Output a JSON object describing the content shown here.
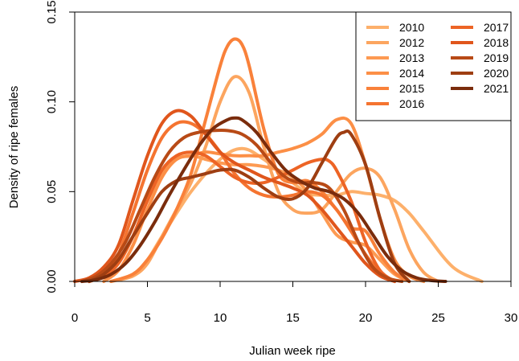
{
  "chart_data": {
    "type": "line",
    "title": "",
    "xlabel": "Julian week ripe",
    "ylabel": "Density of ripe females",
    "xlim": [
      0,
      30
    ],
    "ylim": [
      0,
      0.15
    ],
    "x_ticks": [
      "0",
      "5",
      "10",
      "15",
      "20",
      "25",
      "30"
    ],
    "y_ticks": [
      "0.00",
      "0.05",
      "0.10",
      "0.15"
    ],
    "grid": false,
    "legend_position": "top-right",
    "series": [
      {
        "name": "2010",
        "color": "#fdb06b",
        "x": [
          2.5,
          4,
          5,
          6,
          8,
          10,
          11.5,
          13,
          15,
          16,
          17,
          18,
          19,
          20,
          21,
          22,
          23,
          24,
          26,
          28
        ],
        "y": [
          0.0,
          0.004,
          0.012,
          0.025,
          0.05,
          0.068,
          0.074,
          0.068,
          0.055,
          0.049,
          0.048,
          0.048,
          0.05,
          0.049,
          0.048,
          0.045,
          0.038,
          0.028,
          0.008,
          0.0
        ]
      },
      {
        "name": "2012",
        "color": "#fca55f",
        "x": [
          2.5,
          4,
          5,
          6,
          7,
          8,
          9,
          10,
          11,
          12,
          13,
          14,
          15,
          16,
          17,
          18,
          19,
          20,
          21,
          22,
          23,
          24,
          25
        ],
        "y": [
          0.0,
          0.003,
          0.01,
          0.025,
          0.04,
          0.055,
          0.075,
          0.1,
          0.114,
          0.105,
          0.075,
          0.05,
          0.04,
          0.038,
          0.04,
          0.05,
          0.06,
          0.063,
          0.058,
          0.04,
          0.018,
          0.005,
          0.0
        ]
      },
      {
        "name": "2013",
        "color": "#fd9a52",
        "x": [
          1,
          2,
          3,
          4,
          5,
          6,
          7,
          8,
          9,
          10,
          11,
          12,
          13,
          14,
          15,
          16,
          17,
          18,
          19,
          20,
          21,
          22,
          23
        ],
        "y": [
          0.0,
          0.003,
          0.01,
          0.025,
          0.045,
          0.06,
          0.068,
          0.07,
          0.068,
          0.066,
          0.065,
          0.065,
          0.064,
          0.062,
          0.058,
          0.05,
          0.038,
          0.026,
          0.022,
          0.02,
          0.012,
          0.004,
          0.0
        ]
      },
      {
        "name": "2014",
        "color": "#fc8f46",
        "x": [
          2,
          3,
          4,
          5,
          6,
          7,
          8,
          9,
          10,
          11,
          12,
          13,
          14,
          15,
          16,
          17,
          18,
          19,
          20,
          21,
          22,
          23,
          24
        ],
        "y": [
          0.0,
          0.006,
          0.02,
          0.04,
          0.058,
          0.068,
          0.07,
          0.072,
          0.071,
          0.07,
          0.07,
          0.07,
          0.072,
          0.074,
          0.077,
          0.082,
          0.09,
          0.088,
          0.065,
          0.035,
          0.012,
          0.003,
          0.0
        ]
      },
      {
        "name": "2015",
        "color": "#f9813a",
        "x": [
          2.5,
          4,
          5,
          6,
          7,
          8,
          9,
          10,
          10.5,
          11,
          11.5,
          12,
          13,
          14,
          15,
          16,
          17,
          18,
          19,
          20,
          21,
          22,
          23
        ],
        "y": [
          0.0,
          0.004,
          0.012,
          0.024,
          0.04,
          0.06,
          0.09,
          0.12,
          0.131,
          0.135,
          0.132,
          0.12,
          0.085,
          0.06,
          0.055,
          0.056,
          0.05,
          0.04,
          0.03,
          0.028,
          0.015,
          0.005,
          0.0
        ]
      },
      {
        "name": "2016",
        "color": "#f57430",
        "x": [
          1,
          2,
          3,
          4,
          5,
          6,
          7,
          8,
          9,
          10,
          11,
          12,
          13,
          14,
          15,
          16,
          17,
          18,
          19,
          20,
          21,
          22
        ],
        "y": [
          0.0,
          0.004,
          0.015,
          0.038,
          0.062,
          0.08,
          0.088,
          0.088,
          0.082,
          0.072,
          0.06,
          0.052,
          0.048,
          0.047,
          0.048,
          0.05,
          0.048,
          0.04,
          0.028,
          0.015,
          0.005,
          0.0
        ]
      },
      {
        "name": "2017",
        "color": "#ed6425",
        "x": [
          1,
          2,
          3,
          4,
          5,
          6,
          7,
          8,
          9,
          10,
          11,
          12,
          13,
          14,
          15,
          16,
          17,
          17.5,
          18,
          19,
          20,
          21,
          22
        ],
        "y": [
          0.0,
          0.003,
          0.01,
          0.025,
          0.045,
          0.062,
          0.07,
          0.072,
          0.07,
          0.064,
          0.058,
          0.055,
          0.055,
          0.058,
          0.062,
          0.066,
          0.068,
          0.067,
          0.062,
          0.045,
          0.022,
          0.006,
          0.0
        ]
      },
      {
        "name": "2018",
        "color": "#e0561c",
        "x": [
          0,
          1,
          2,
          3,
          4,
          5,
          6,
          7,
          8,
          9,
          10,
          11,
          12,
          13,
          14,
          15,
          16,
          17,
          18,
          19,
          20,
          21,
          22
        ],
        "y": [
          0.0,
          0.002,
          0.008,
          0.02,
          0.045,
          0.07,
          0.088,
          0.095,
          0.092,
          0.082,
          0.072,
          0.066,
          0.062,
          0.058,
          0.055,
          0.052,
          0.048,
          0.04,
          0.03,
          0.02,
          0.01,
          0.003,
          0.0
        ]
      },
      {
        "name": "2019",
        "color": "#b84a16",
        "x": [
          0.5,
          1.5,
          2.5,
          3.5,
          4.5,
          5.5,
          6.5,
          7.5,
          8.5,
          9.5,
          10.5,
          11.5,
          12.5,
          13.5,
          14.5,
          15.5,
          16.5,
          17.5,
          18.5,
          19.5,
          20.5,
          21.5,
          22.5
        ],
        "y": [
          0.0,
          0.003,
          0.01,
          0.022,
          0.04,
          0.058,
          0.072,
          0.08,
          0.083,
          0.084,
          0.084,
          0.082,
          0.076,
          0.066,
          0.058,
          0.055,
          0.055,
          0.052,
          0.04,
          0.022,
          0.008,
          0.002,
          0.0
        ]
      },
      {
        "name": "2020",
        "color": "#9e3e12",
        "x": [
          1,
          2,
          3,
          4,
          5,
          6,
          7,
          8,
          9,
          10,
          11,
          12,
          13,
          14,
          15,
          16,
          17,
          18,
          18.5,
          19,
          20,
          21,
          22,
          23
        ],
        "y": [
          0.0,
          0.004,
          0.012,
          0.025,
          0.038,
          0.05,
          0.056,
          0.058,
          0.06,
          0.062,
          0.062,
          0.058,
          0.052,
          0.047,
          0.046,
          0.052,
          0.066,
          0.08,
          0.083,
          0.082,
          0.065,
          0.035,
          0.01,
          0.0
        ]
      },
      {
        "name": "2021",
        "color": "#7a2c0c",
        "x": [
          0.5,
          1.5,
          2.5,
          3.5,
          4.5,
          5.5,
          6.5,
          7.5,
          8.5,
          9.5,
          10.5,
          11,
          11.5,
          12.5,
          13.5,
          14.5,
          15.5,
          16.5,
          17.5,
          18.5,
          19.5,
          20.5,
          21.5,
          22.5,
          23.5,
          24.5,
          25.5
        ],
        "y": [
          0.0,
          0.001,
          0.004,
          0.01,
          0.02,
          0.033,
          0.048,
          0.062,
          0.075,
          0.085,
          0.09,
          0.091,
          0.09,
          0.083,
          0.072,
          0.062,
          0.056,
          0.052,
          0.05,
          0.046,
          0.038,
          0.026,
          0.014,
          0.006,
          0.002,
          0.0005,
          0.0
        ]
      }
    ]
  }
}
